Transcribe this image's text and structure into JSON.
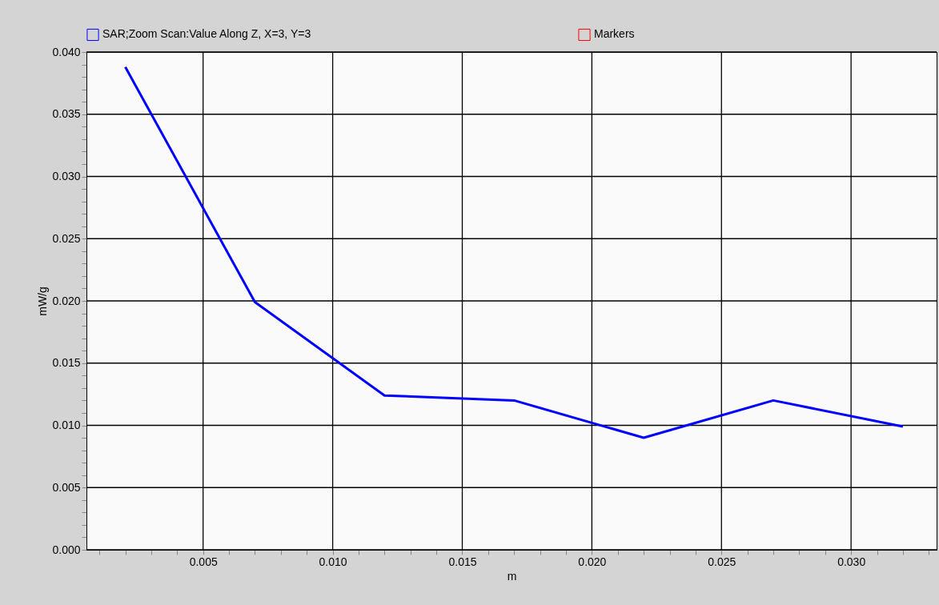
{
  "chart_data": {
    "type": "line",
    "xlabel": "m",
    "ylabel": "mW/g",
    "x": [
      0.002,
      0.007,
      0.012,
      0.017,
      0.022,
      0.027,
      0.032
    ],
    "series": [
      {
        "name": "SAR;Zoom Scan:Value Along Z, X=3, Y=3",
        "color": "#0000ff",
        "values": [
          0.0388,
          0.0199,
          0.0124,
          0.012,
          0.009,
          0.012,
          0.0099
        ]
      },
      {
        "name": "Markers",
        "color": "#ff0000",
        "values": [
          null,
          null,
          null,
          null,
          null,
          null,
          null
        ]
      }
    ],
    "xlim": [
      0.0005,
      0.0333
    ],
    "xticks": [
      {
        "value": 0.001,
        "label": null
      },
      {
        "value": 0.002,
        "label": null
      },
      {
        "value": 0.003,
        "label": null
      },
      {
        "value": 0.004,
        "label": null
      },
      {
        "value": 0.005,
        "label": "0.005"
      },
      {
        "value": 0.006,
        "label": null
      },
      {
        "value": 0.007,
        "label": null
      },
      {
        "value": 0.008,
        "label": null
      },
      {
        "value": 0.009,
        "label": null
      },
      {
        "value": 0.01,
        "label": "0.010"
      },
      {
        "value": 0.011,
        "label": null
      },
      {
        "value": 0.012,
        "label": null
      },
      {
        "value": 0.013,
        "label": null
      },
      {
        "value": 0.014,
        "label": null
      },
      {
        "value": 0.015,
        "label": "0.015"
      },
      {
        "value": 0.016,
        "label": null
      },
      {
        "value": 0.017,
        "label": null
      },
      {
        "value": 0.018,
        "label": null
      },
      {
        "value": 0.019,
        "label": null
      },
      {
        "value": 0.02,
        "label": "0.020"
      },
      {
        "value": 0.021,
        "label": null
      },
      {
        "value": 0.022,
        "label": null
      },
      {
        "value": 0.023,
        "label": null
      },
      {
        "value": 0.024,
        "label": null
      },
      {
        "value": 0.025,
        "label": "0.025"
      },
      {
        "value": 0.026,
        "label": null
      },
      {
        "value": 0.027,
        "label": null
      },
      {
        "value": 0.028,
        "label": null
      },
      {
        "value": 0.029,
        "label": null
      },
      {
        "value": 0.03,
        "label": "0.030"
      },
      {
        "value": 0.031,
        "label": null
      },
      {
        "value": 0.032,
        "label": null
      },
      {
        "value": 0.033,
        "label": null
      }
    ],
    "ylim": [
      0,
      0.04
    ],
    "yticks": [
      {
        "value": 0,
        "label": "0.000"
      },
      {
        "value": 0.001,
        "label": null
      },
      {
        "value": 0.002,
        "label": null
      },
      {
        "value": 0.003,
        "label": null
      },
      {
        "value": 0.004,
        "label": null
      },
      {
        "value": 0.005,
        "label": "0.005"
      },
      {
        "value": 0.006,
        "label": null
      },
      {
        "value": 0.007,
        "label": null
      },
      {
        "value": 0.008,
        "label": null
      },
      {
        "value": 0.009,
        "label": null
      },
      {
        "value": 0.01,
        "label": "0.010"
      },
      {
        "value": 0.011,
        "label": null
      },
      {
        "value": 0.012,
        "label": null
      },
      {
        "value": 0.013,
        "label": null
      },
      {
        "value": 0.014,
        "label": null
      },
      {
        "value": 0.015,
        "label": "0.015"
      },
      {
        "value": 0.016,
        "label": null
      },
      {
        "value": 0.017,
        "label": null
      },
      {
        "value": 0.018,
        "label": null
      },
      {
        "value": 0.019,
        "label": null
      },
      {
        "value": 0.02,
        "label": "0.020"
      },
      {
        "value": 0.021,
        "label": null
      },
      {
        "value": 0.022,
        "label": null
      },
      {
        "value": 0.023,
        "label": null
      },
      {
        "value": 0.024,
        "label": null
      },
      {
        "value": 0.025,
        "label": "0.025"
      },
      {
        "value": 0.026,
        "label": null
      },
      {
        "value": 0.027,
        "label": null
      },
      {
        "value": 0.028,
        "label": null
      },
      {
        "value": 0.029,
        "label": null
      },
      {
        "value": 0.03,
        "label": "0.030"
      },
      {
        "value": 0.031,
        "label": null
      },
      {
        "value": 0.032,
        "label": null
      },
      {
        "value": 0.033,
        "label": null
      },
      {
        "value": 0.034,
        "label": null
      },
      {
        "value": 0.035,
        "label": "0.035"
      },
      {
        "value": 0.036,
        "label": null
      },
      {
        "value": 0.037,
        "label": null
      },
      {
        "value": 0.038,
        "label": null
      },
      {
        "value": 0.039,
        "label": null
      },
      {
        "value": 0.04,
        "label": "0.040"
      }
    ],
    "grid": true,
    "legend": "top",
    "marker": "none",
    "line_style": "solid"
  }
}
